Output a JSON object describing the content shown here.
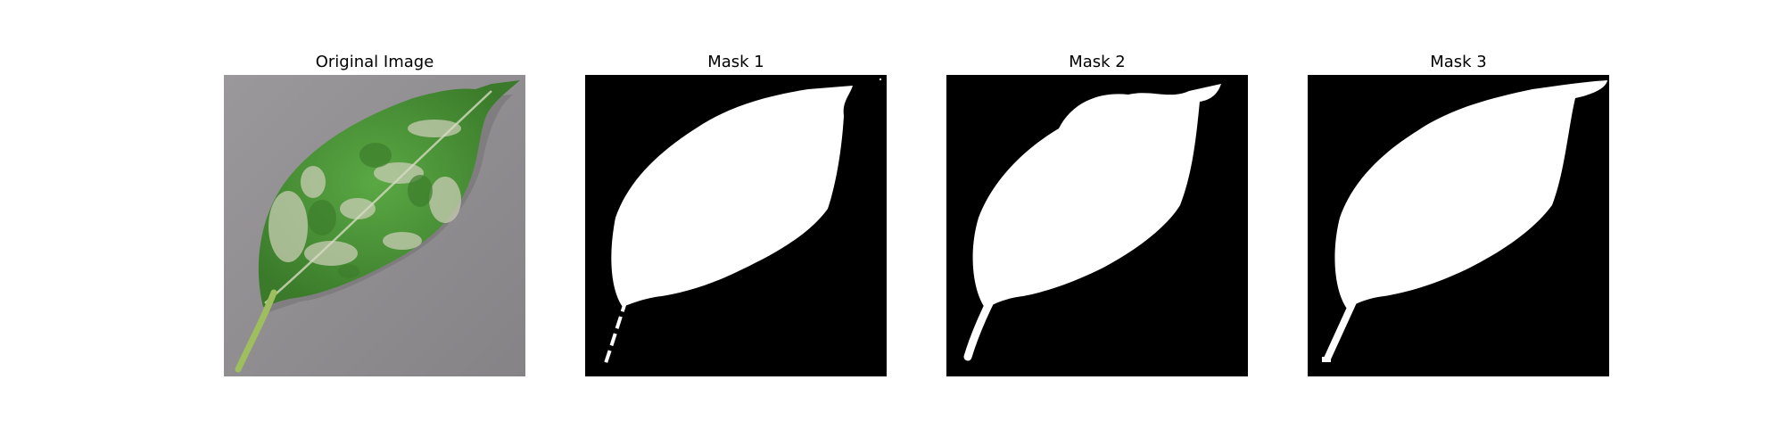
{
  "figure": {
    "panels": [
      {
        "title": "Original Image",
        "kind": "photo",
        "subject": "leaf-photo"
      },
      {
        "title": "Mask 1",
        "kind": "mask",
        "subject": "segmentation-mask"
      },
      {
        "title": "Mask 2",
        "kind": "mask",
        "subject": "segmentation-mask"
      },
      {
        "title": "Mask 3",
        "kind": "mask",
        "subject": "segmentation-mask"
      }
    ],
    "colors": {
      "background": "#8e8c8e",
      "leaf": "#4e9a3a",
      "leaf_dark": "#3d7e2c",
      "blight": "#c9cdb4",
      "stem": "#9fbf5e",
      "mask_bg": "#000000",
      "mask_fg": "#ffffff"
    }
  }
}
